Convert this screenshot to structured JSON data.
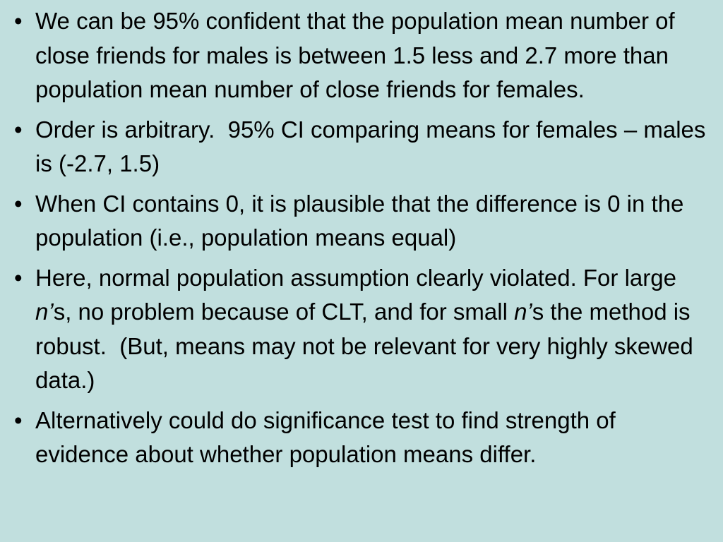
{
  "bullets": [
    "We can be 95% confident that the population mean number of close friends for males is between 1.5 less and 2.7 more than population mean number of close friends for females.",
    "Order is arbitrary.  95% CI comparing means for females – males is (-2.7, 1.5)",
    "When CI contains 0, it is plausible that the difference is 0 in the population (i.e., population means equal)",
    {
      "runs": [
        {
          "text": "Here, normal population assumption clearly violated. For large "
        },
        {
          "text": "n’",
          "italic": true
        },
        {
          "text": "s, no problem because of CLT, and for small "
        },
        {
          "text": "n’",
          "italic": true
        },
        {
          "text": "s the method is robust.  (But, means may not be relevant for very highly skewed data.)"
        }
      ]
    },
    "Alternatively could do significance test to find strength of evidence about whether population means differ."
  ]
}
